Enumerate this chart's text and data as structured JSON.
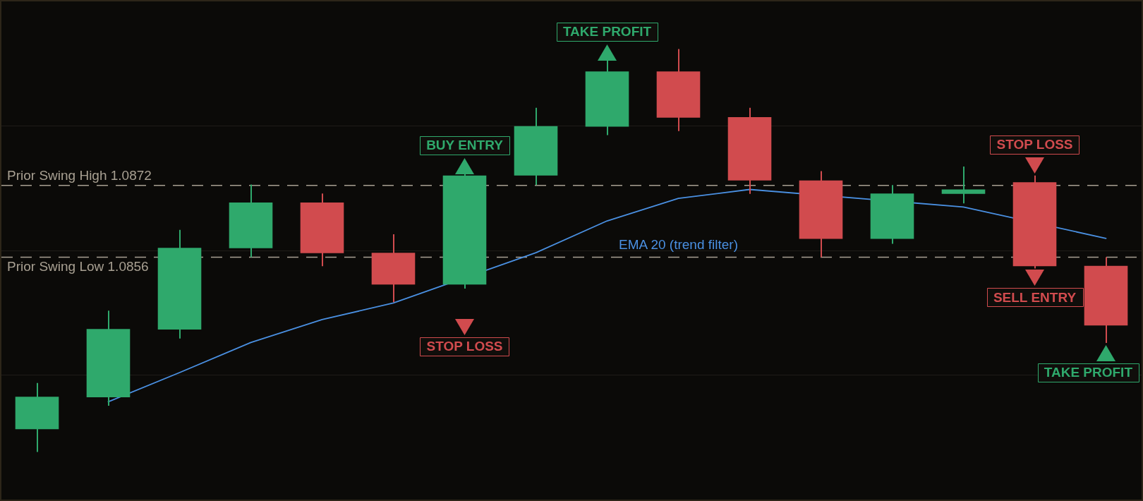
{
  "chart_data": {
    "type": "candlestick",
    "categories": [
      null,
      null,
      null,
      null,
      null,
      null,
      null,
      null,
      null,
      null,
      null,
      null,
      null,
      null,
      null,
      null
    ],
    "ohlc": [
      [
        1.08177,
        1.0828,
        1.08126,
        1.08249
      ],
      [
        1.08248,
        1.08441,
        1.08229,
        1.084
      ],
      [
        1.08399,
        1.08621,
        1.08379,
        1.08581
      ],
      [
        1.0858,
        1.08722,
        1.0856,
        1.08682
      ],
      [
        1.08682,
        1.08702,
        1.0854,
        1.08569
      ],
      [
        1.0857,
        1.08611,
        1.0846,
        1.08499
      ],
      [
        1.08499,
        1.08745,
        1.0849,
        1.08742
      ],
      [
        1.08742,
        1.08893,
        1.08721,
        1.08852
      ],
      [
        1.08851,
        1.08998,
        1.08832,
        1.08974
      ],
      [
        1.08974,
        1.09024,
        1.08841,
        1.08871
      ],
      [
        1.08872,
        1.08893,
        1.08701,
        1.08731
      ],
      [
        1.08731,
        1.08752,
        1.0856,
        1.08601
      ],
      [
        1.08601,
        1.08721,
        1.0859,
        1.08702
      ],
      [
        1.08701,
        1.08762,
        1.0868,
        1.08711
      ],
      [
        1.08727,
        1.08742,
        1.08535,
        1.0854
      ],
      [
        1.08541,
        1.0856,
        1.08369,
        1.08408
      ]
    ],
    "colors": [
      "#2fa96c",
      "#2fa96c",
      "#2fa96c",
      "#2fa96c",
      "#d14b4e",
      "#d14b4e",
      "#2fa96c",
      "#2fa96c",
      "#2fa96c",
      "#d14b4e",
      "#d14b4e",
      "#d14b4e",
      "#2fa96c",
      "#2fa96c",
      "#d14b4e",
      "#d14b4e"
    ],
    "series": [
      {
        "name": "EMA 20 (trend filter)",
        "type": "line",
        "color": "#4a90e2",
        "values": [
          null,
          1.08238,
          1.08303,
          1.0837,
          1.08421,
          1.08458,
          null,
          1.0857,
          1.08641,
          1.08691,
          1.08711,
          null,
          null,
          1.08672,
          null,
          1.08602
        ]
      }
    ],
    "ylim": [
      1.0802,
      1.0913
    ],
    "yticks": [
      {
        "value": 1.08853,
        "label": null
      },
      {
        "value": 1.08575,
        "label": null
      },
      {
        "value": 1.08298,
        "label": null
      }
    ],
    "grid": "y",
    "tick_labels": false,
    "ref_lines": [
      {
        "axis": "y",
        "value": 1.0872,
        "label": "Prior Swing High 1.0872",
        "color": "#a8a092",
        "line_style": "dashed"
      },
      {
        "axis": "y",
        "value": 1.0856,
        "label": "Prior Swing Low 1.0856",
        "color": "#a8a092",
        "line_style": "dashed"
      }
    ],
    "annotations": [
      "TAKE PROFIT",
      "BUY ENTRY",
      "STOP LOSS",
      "STOP LOSS",
      "SELL ENTRY",
      "TAKE PROFIT"
    ]
  }
}
